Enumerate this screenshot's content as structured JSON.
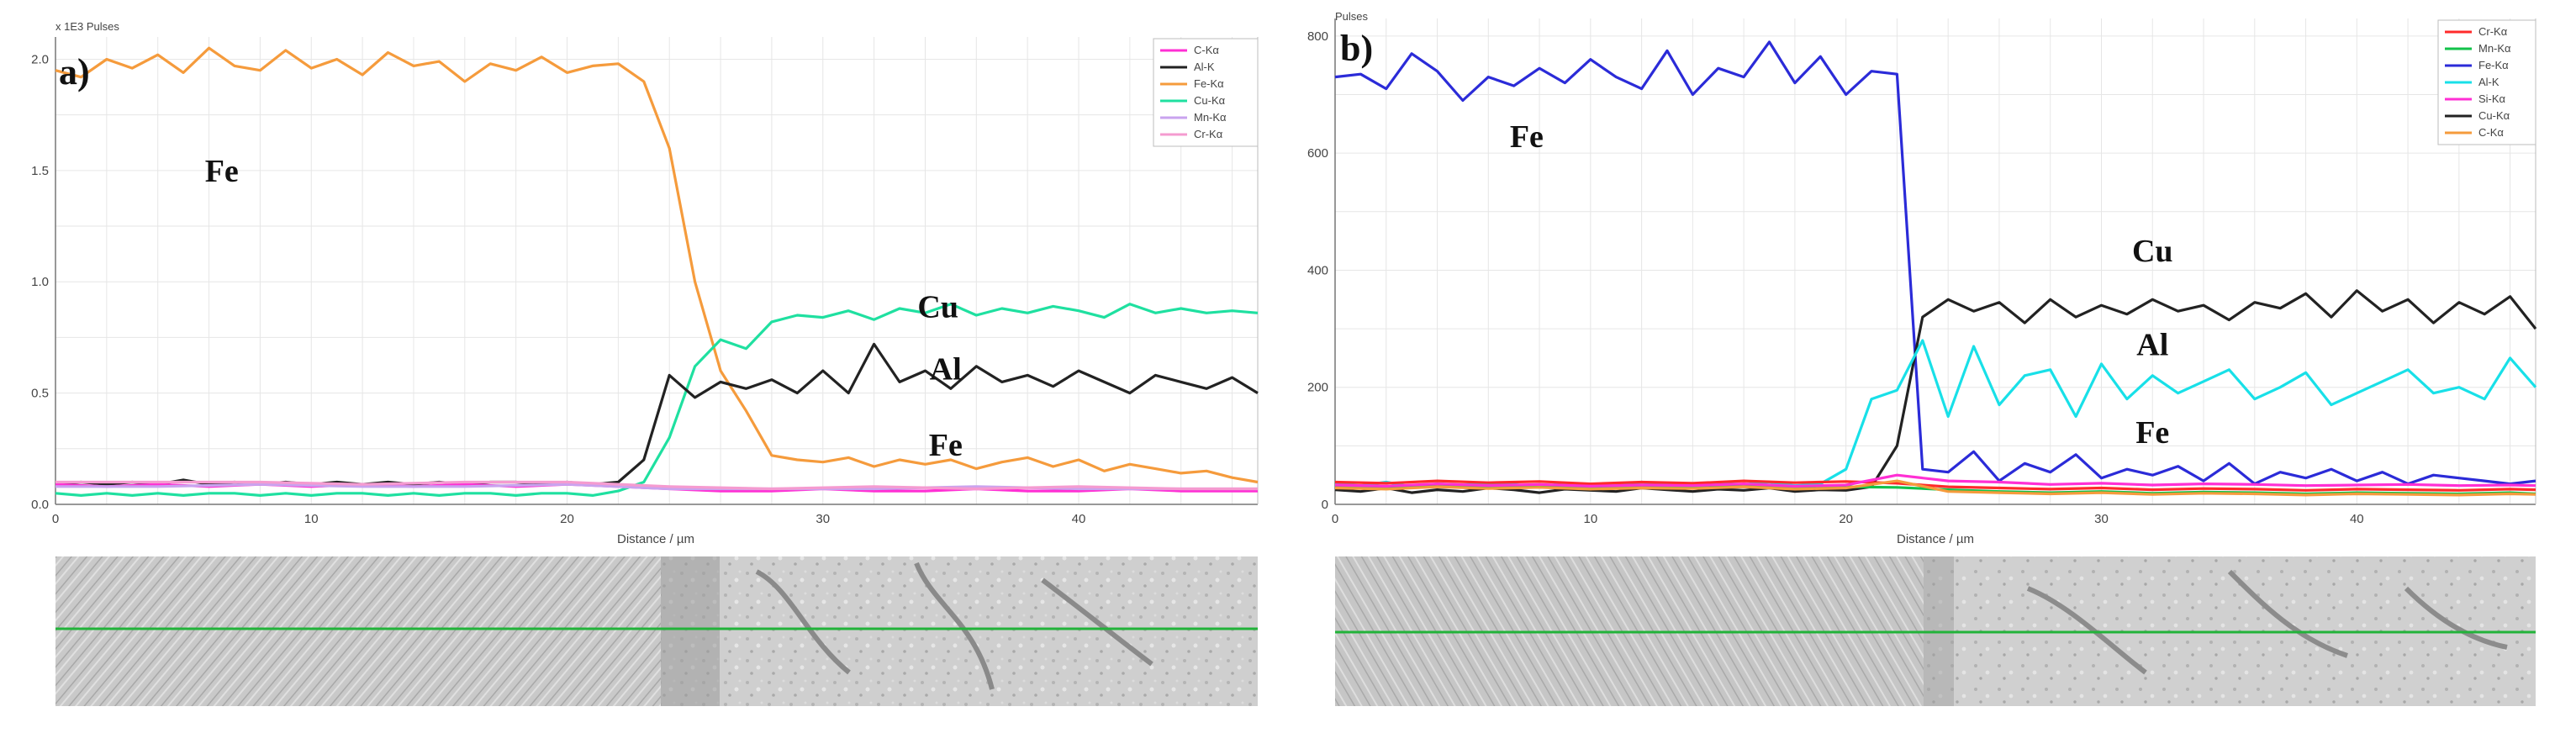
{
  "chart_data": [
    {
      "type": "line",
      "panel_label": "a)",
      "units_label": "x 1E3 Pulses",
      "xlabel": "Distance / µm",
      "xlim": [
        0,
        47
      ],
      "ylim": [
        0,
        2.1
      ],
      "xticks": [
        0,
        10,
        20,
        30,
        40
      ],
      "yticks": [
        0.0,
        0.5,
        1.0,
        1.5,
        2.0
      ],
      "ytick_labels": [
        "0.0",
        "0.5",
        "1.0",
        "1.5",
        "2.0"
      ],
      "grid": true,
      "legend_position": "top-right",
      "legend": [
        {
          "name": "C-Kα",
          "color": "#ff2fd4"
        },
        {
          "name": "Al-K",
          "color": "#222222"
        },
        {
          "name": "Fe-Kα",
          "color": "#f59b3c"
        },
        {
          "name": "Cu-Kα",
          "color": "#1fe0a0"
        },
        {
          "name": "Mn-Kα",
          "color": "#c9a3ef"
        },
        {
          "name": "Cr-Kα",
          "color": "#f59bd0"
        }
      ],
      "annotations": [
        {
          "text": "Fe",
          "x": 6.5,
          "y": 1.45
        },
        {
          "text": "Cu",
          "x": 34.5,
          "y": 0.84
        },
        {
          "text": "Al",
          "x": 34.8,
          "y": 0.56
        },
        {
          "text": "Fe",
          "x": 34.8,
          "y": 0.22
        }
      ],
      "series": [
        {
          "name": "Fe-Kα",
          "color": "#f59b3c",
          "x": [
            0,
            1,
            2,
            3,
            4,
            5,
            6,
            7,
            8,
            9,
            10,
            11,
            12,
            13,
            14,
            15,
            16,
            17,
            18,
            19,
            20,
            21,
            22,
            23,
            24,
            25,
            26,
            27,
            28,
            29,
            30,
            31,
            32,
            33,
            34,
            35,
            36,
            37,
            38,
            39,
            40,
            41,
            42,
            43,
            44,
            45,
            46,
            47
          ],
          "values": [
            1.95,
            1.92,
            2.0,
            1.96,
            2.02,
            1.94,
            2.05,
            1.97,
            1.95,
            2.04,
            1.96,
            2.0,
            1.93,
            2.03,
            1.97,
            1.99,
            1.9,
            1.98,
            1.95,
            2.01,
            1.94,
            1.97,
            1.98,
            1.9,
            1.6,
            1.0,
            0.6,
            0.42,
            0.22,
            0.2,
            0.19,
            0.21,
            0.17,
            0.2,
            0.18,
            0.2,
            0.16,
            0.19,
            0.21,
            0.17,
            0.2,
            0.15,
            0.18,
            0.16,
            0.14,
            0.15,
            0.12,
            0.1
          ]
        },
        {
          "name": "Cu-Kα",
          "color": "#1fe0a0",
          "x": [
            0,
            1,
            2,
            3,
            4,
            5,
            6,
            7,
            8,
            9,
            10,
            11,
            12,
            13,
            14,
            15,
            16,
            17,
            18,
            19,
            20,
            21,
            22,
            23,
            24,
            25,
            26,
            27,
            28,
            29,
            30,
            31,
            32,
            33,
            34,
            35,
            36,
            37,
            38,
            39,
            40,
            41,
            42,
            43,
            44,
            45,
            46,
            47
          ],
          "values": [
            0.05,
            0.04,
            0.05,
            0.04,
            0.05,
            0.04,
            0.05,
            0.05,
            0.04,
            0.05,
            0.04,
            0.05,
            0.05,
            0.04,
            0.05,
            0.04,
            0.05,
            0.05,
            0.04,
            0.05,
            0.05,
            0.04,
            0.06,
            0.1,
            0.3,
            0.62,
            0.74,
            0.7,
            0.82,
            0.85,
            0.84,
            0.87,
            0.83,
            0.88,
            0.86,
            0.9,
            0.85,
            0.88,
            0.86,
            0.89,
            0.87,
            0.84,
            0.9,
            0.86,
            0.88,
            0.86,
            0.87,
            0.86
          ]
        },
        {
          "name": "Al-K",
          "color": "#222222",
          "x": [
            0,
            1,
            2,
            3,
            4,
            5,
            6,
            7,
            8,
            9,
            10,
            11,
            12,
            13,
            14,
            15,
            16,
            17,
            18,
            19,
            20,
            21,
            22,
            23,
            24,
            25,
            26,
            27,
            28,
            29,
            30,
            31,
            32,
            33,
            34,
            35,
            36,
            37,
            38,
            39,
            40,
            41,
            42,
            43,
            44,
            45,
            46,
            47
          ],
          "values": [
            0.09,
            0.1,
            0.09,
            0.1,
            0.09,
            0.11,
            0.09,
            0.1,
            0.09,
            0.1,
            0.09,
            0.1,
            0.09,
            0.1,
            0.09,
            0.1,
            0.09,
            0.1,
            0.1,
            0.09,
            0.1,
            0.09,
            0.1,
            0.2,
            0.58,
            0.48,
            0.55,
            0.52,
            0.56,
            0.5,
            0.6,
            0.5,
            0.72,
            0.55,
            0.6,
            0.52,
            0.62,
            0.55,
            0.58,
            0.53,
            0.6,
            0.55,
            0.5,
            0.58,
            0.55,
            0.52,
            0.57,
            0.5
          ]
        },
        {
          "name": "C-Kα",
          "color": "#ff2fd4",
          "x": [
            0,
            2,
            4,
            6,
            8,
            10,
            12,
            14,
            16,
            18,
            20,
            22,
            24,
            26,
            28,
            30,
            32,
            34,
            36,
            38,
            40,
            42,
            44,
            46,
            47
          ],
          "values": [
            0.09,
            0.08,
            0.09,
            0.08,
            0.09,
            0.08,
            0.09,
            0.08,
            0.09,
            0.08,
            0.09,
            0.08,
            0.07,
            0.06,
            0.06,
            0.07,
            0.06,
            0.06,
            0.07,
            0.06,
            0.06,
            0.07,
            0.06,
            0.06,
            0.06
          ]
        },
        {
          "name": "Mn-Kα",
          "color": "#c9a3ef",
          "x": [
            0,
            4,
            8,
            12,
            16,
            20,
            24,
            28,
            32,
            36,
            40,
            44,
            47
          ],
          "values": [
            0.08,
            0.08,
            0.09,
            0.08,
            0.08,
            0.09,
            0.07,
            0.07,
            0.07,
            0.08,
            0.07,
            0.07,
            0.07
          ]
        },
        {
          "name": "Cr-Kα",
          "color": "#f59bd0",
          "x": [
            0,
            4,
            8,
            12,
            16,
            20,
            24,
            28,
            32,
            36,
            40,
            44,
            47
          ],
          "values": [
            0.1,
            0.1,
            0.1,
            0.09,
            0.1,
            0.1,
            0.08,
            0.07,
            0.08,
            0.07,
            0.08,
            0.07,
            0.07
          ]
        }
      ]
    },
    {
      "type": "line",
      "panel_label": "b)",
      "units_label": "Pulses",
      "xlabel": "Distance / µm",
      "xlim": [
        0,
        47
      ],
      "ylim": [
        0,
        830
      ],
      "xticks": [
        0,
        10,
        20,
        30,
        40
      ],
      "yticks": [
        0,
        200,
        400,
        600,
        800
      ],
      "ytick_labels": [
        "0",
        "200",
        "400",
        "600",
        "800"
      ],
      "grid": true,
      "legend_position": "top-right",
      "legend": [
        {
          "name": "Cr-Kα",
          "color": "#ff2a2a"
        },
        {
          "name": "Mn-Kα",
          "color": "#12c24a"
        },
        {
          "name": "Fe-Kα",
          "color": "#2b2bd8"
        },
        {
          "name": "Al-K",
          "color": "#18e0e8"
        },
        {
          "name": "Si-Kα",
          "color": "#ff2fd4"
        },
        {
          "name": "Cu-Kα",
          "color": "#222222"
        },
        {
          "name": "C-Kα",
          "color": "#f59b3c"
        }
      ],
      "annotations": [
        {
          "text": "Fe",
          "x": 7.5,
          "y": 610
        },
        {
          "text": "Cu",
          "x": 32,
          "y": 415
        },
        {
          "text": "Al",
          "x": 32,
          "y": 255
        },
        {
          "text": "Fe",
          "x": 32,
          "y": 105
        }
      ],
      "series": [
        {
          "name": "Fe-Kα",
          "color": "#2b2bd8",
          "x": [
            0,
            1,
            2,
            3,
            4,
            5,
            6,
            7,
            8,
            9,
            10,
            11,
            12,
            13,
            14,
            15,
            16,
            17,
            18,
            19,
            20,
            21,
            22,
            23,
            24,
            25,
            26,
            27,
            28,
            29,
            30,
            31,
            32,
            33,
            34,
            35,
            36,
            37,
            38,
            39,
            40,
            41,
            42,
            43,
            44,
            45,
            46,
            47
          ],
          "values": [
            730,
            735,
            710,
            770,
            740,
            690,
            730,
            715,
            745,
            720,
            760,
            730,
            710,
            775,
            700,
            745,
            730,
            790,
            720,
            765,
            700,
            740,
            735,
            60,
            55,
            90,
            40,
            70,
            55,
            85,
            45,
            60,
            50,
            65,
            40,
            70,
            35,
            55,
            45,
            60,
            40,
            55,
            35,
            50,
            45,
            40,
            35,
            40
          ]
        },
        {
          "name": "Cu-Kα",
          "color": "#222222",
          "x": [
            0,
            1,
            2,
            3,
            4,
            5,
            6,
            7,
            8,
            9,
            10,
            11,
            12,
            13,
            14,
            15,
            16,
            17,
            18,
            19,
            20,
            21,
            22,
            23,
            24,
            25,
            26,
            27,
            28,
            29,
            30,
            31,
            32,
            33,
            34,
            35,
            36,
            37,
            38,
            39,
            40,
            41,
            42,
            43,
            44,
            45,
            46,
            47
          ],
          "values": [
            25,
            22,
            28,
            20,
            25,
            22,
            28,
            25,
            20,
            26,
            24,
            22,
            28,
            25,
            22,
            26,
            24,
            28,
            22,
            25,
            24,
            30,
            100,
            320,
            350,
            330,
            345,
            310,
            350,
            320,
            340,
            325,
            350,
            330,
            340,
            315,
            345,
            335,
            360,
            320,
            365,
            330,
            350,
            310,
            345,
            325,
            355,
            300
          ]
        },
        {
          "name": "Al-K",
          "color": "#18e0e8",
          "x": [
            0,
            1,
            2,
            3,
            4,
            5,
            6,
            7,
            8,
            9,
            10,
            11,
            12,
            13,
            14,
            15,
            16,
            17,
            18,
            19,
            20,
            21,
            22,
            23,
            24,
            25,
            26,
            27,
            28,
            29,
            30,
            31,
            32,
            33,
            34,
            35,
            36,
            37,
            38,
            39,
            40,
            41,
            42,
            43,
            44,
            45,
            46,
            47
          ],
          "values": [
            35,
            32,
            38,
            30,
            35,
            33,
            36,
            34,
            30,
            36,
            34,
            32,
            38,
            35,
            32,
            36,
            34,
            38,
            32,
            35,
            60,
            180,
            195,
            280,
            150,
            270,
            170,
            220,
            230,
            150,
            240,
            180,
            220,
            190,
            210,
            230,
            180,
            200,
            225,
            170,
            190,
            210,
            230,
            190,
            200,
            180,
            250,
            200
          ]
        },
        {
          "name": "Cr-Kα",
          "color": "#ff2a2a",
          "x": [
            0,
            2,
            4,
            6,
            8,
            10,
            12,
            14,
            16,
            18,
            20,
            22,
            24,
            26,
            28,
            30,
            32,
            34,
            36,
            38,
            40,
            42,
            44,
            46,
            47
          ],
          "values": [
            38,
            36,
            40,
            37,
            39,
            35,
            38,
            36,
            40,
            37,
            39,
            36,
            30,
            28,
            26,
            28,
            25,
            27,
            26,
            24,
            26,
            25,
            24,
            26,
            25
          ]
        },
        {
          "name": "Mn-Kα",
          "color": "#12c24a",
          "x": [
            0,
            2,
            4,
            6,
            8,
            10,
            12,
            14,
            16,
            18,
            20,
            22,
            24,
            26,
            28,
            30,
            32,
            34,
            36,
            38,
            40,
            42,
            44,
            46,
            47
          ],
          "values": [
            30,
            28,
            32,
            29,
            31,
            28,
            30,
            29,
            32,
            28,
            30,
            29,
            25,
            22,
            20,
            22,
            19,
            21,
            20,
            18,
            20,
            19,
            18,
            20,
            18
          ]
        },
        {
          "name": "Si-Kα",
          "color": "#ff2fd4",
          "x": [
            0,
            2,
            4,
            6,
            8,
            10,
            12,
            14,
            16,
            18,
            20,
            22,
            24,
            26,
            28,
            30,
            32,
            34,
            36,
            38,
            40,
            42,
            44,
            46,
            47
          ],
          "values": [
            33,
            31,
            35,
            32,
            34,
            31,
            33,
            32,
            35,
            31,
            33,
            50,
            40,
            38,
            34,
            36,
            33,
            35,
            34,
            32,
            33,
            34,
            32,
            33,
            32
          ]
        },
        {
          "name": "C-Kα",
          "color": "#f59b3c",
          "x": [
            0,
            2,
            4,
            6,
            8,
            10,
            12,
            14,
            16,
            18,
            20,
            22,
            24,
            26,
            28,
            30,
            32,
            34,
            36,
            38,
            40,
            42,
            44,
            46,
            47
          ],
          "values": [
            28,
            26,
            30,
            27,
            29,
            26,
            28,
            27,
            30,
            26,
            28,
            40,
            22,
            20,
            18,
            20,
            17,
            19,
            18,
            16,
            18,
            17,
            16,
            18,
            17
          ]
        }
      ]
    }
  ]
}
